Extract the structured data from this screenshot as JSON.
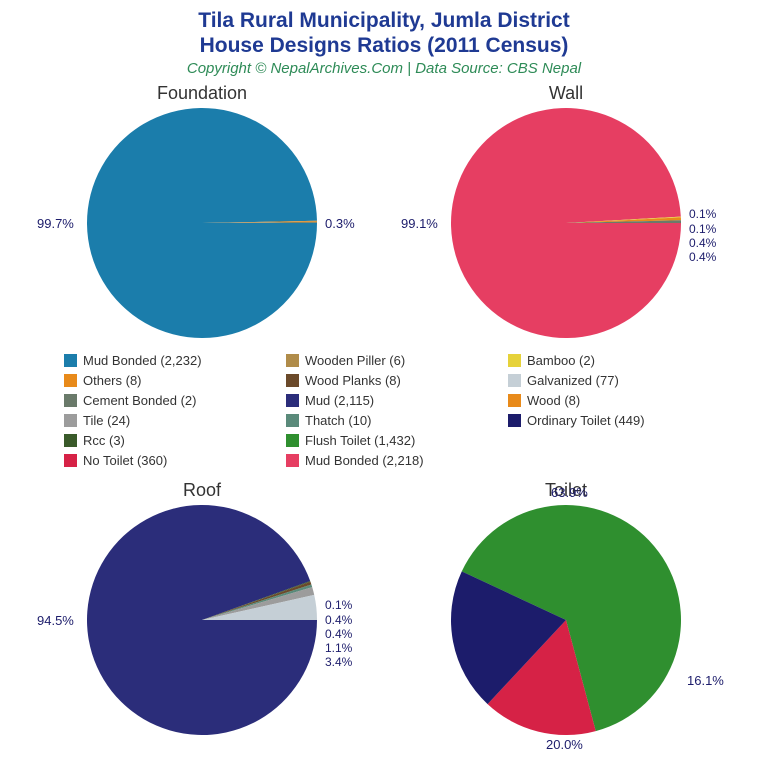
{
  "title_line1": "Tila Rural Municipality, Jumla District",
  "title_line2": "House Designs Ratios (2011 Census)",
  "subtitle": "Copyright © NepalArchives.Com | Data Source: CBS Nepal",
  "colors": {
    "title": "#1f3a93",
    "subtitle": "#2e8b57",
    "label": "#1c1c6b",
    "background": "#ffffff"
  },
  "legend": [
    {
      "label": "Mud Bonded (2,232)",
      "color": "#1b7dab"
    },
    {
      "label": "Others (8)",
      "color": "#e88a1a"
    },
    {
      "label": "Cement Bonded (2)",
      "color": "#6a7a6a"
    },
    {
      "label": "Tile (24)",
      "color": "#9c9c9c"
    },
    {
      "label": "Rcc (3)",
      "color": "#3a5a2a"
    },
    {
      "label": "No Toilet (360)",
      "color": "#d62246"
    },
    {
      "label": "Wooden Piller (6)",
      "color": "#b08c4a"
    },
    {
      "label": "Wood Planks (8)",
      "color": "#6b4a2a"
    },
    {
      "label": "Mud (2,115)",
      "color": "#2b2d7a"
    },
    {
      "label": "Thatch (10)",
      "color": "#5a8a7a"
    },
    {
      "label": "Flush Toilet (1,432)",
      "color": "#2f8f2f"
    },
    {
      "label": "Mud Bonded (2,218)",
      "color": "#e63e62"
    },
    {
      "label": "Bamboo (2)",
      "color": "#e6d23a"
    },
    {
      "label": "Galvanized (77)",
      "color": "#c5cfd6"
    },
    {
      "label": "Wood (8)",
      "color": "#e88a1a"
    },
    {
      "label": "Ordinary Toilet (449)",
      "color": "#1c1c6b"
    }
  ],
  "charts": {
    "foundation": {
      "title": "Foundation",
      "main_pct": "99.7%",
      "small_pcts": [
        "0.3%"
      ],
      "slices": [
        {
          "color": "#1b7dab",
          "start": 0,
          "end": 358.9
        },
        {
          "color": "#e88a1a",
          "start": 358.9,
          "end": 359.3
        },
        {
          "color": "#b08c4a",
          "start": 359.3,
          "end": 359.7
        },
        {
          "color": "#6a7a6a",
          "start": 359.7,
          "end": 360
        }
      ]
    },
    "wall": {
      "title": "Wall",
      "main_pct": "99.1%",
      "small_pcts": [
        "0.1%",
        "0.1%",
        "0.4%",
        "0.4%"
      ],
      "slices": [
        {
          "color": "#e63e62",
          "start": 0,
          "end": 356.8
        },
        {
          "color": "#e6d23a",
          "start": 356.8,
          "end": 357.2
        },
        {
          "color": "#e88a1a",
          "start": 357.2,
          "end": 358.6
        },
        {
          "color": "#6a7a6a",
          "start": 358.6,
          "end": 360
        }
      ]
    },
    "roof": {
      "title": "Roof",
      "main_pct": "94.5%",
      "small_pcts": [
        "0.1%",
        "0.4%",
        "0.4%",
        "1.1%",
        "3.4%"
      ],
      "slices": [
        {
          "color": "#2b2d7a",
          "start": 0,
          "end": 340.2
        },
        {
          "color": "#3a5a2a",
          "start": 340.2,
          "end": 340.6
        },
        {
          "color": "#6b4a2a",
          "start": 340.6,
          "end": 342.0
        },
        {
          "color": "#5a8a7a",
          "start": 342.0,
          "end": 343.4
        },
        {
          "color": "#9c9c9c",
          "start": 343.4,
          "end": 347.4
        },
        {
          "color": "#c5cfd6",
          "start": 347.4,
          "end": 360
        }
      ]
    },
    "toilet": {
      "title": "Toilet",
      "labels": {
        "flush": "63.9%",
        "notoilet": "16.1%",
        "ordinary": "20.0%"
      },
      "slices": [
        {
          "color": "#2f8f2f",
          "start": 0,
          "end": 230.0
        },
        {
          "color": "#d62246",
          "start": 230.0,
          "end": 288.0
        },
        {
          "color": "#1c1c6b",
          "start": 288.0,
          "end": 360
        }
      ]
    }
  }
}
